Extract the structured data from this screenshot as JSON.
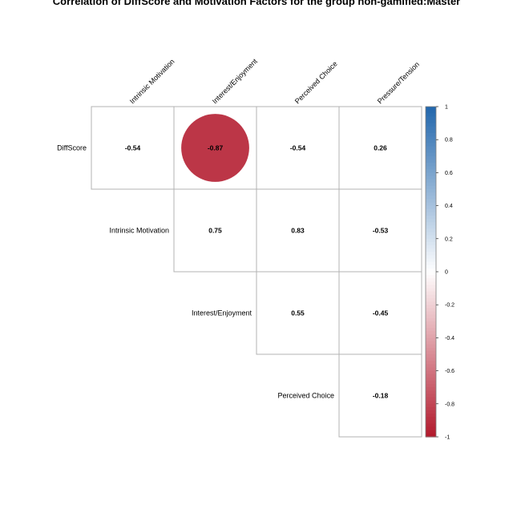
{
  "chart_data": {
    "type": "heatmap",
    "title": "Correlation of DiffScore and Motivation Factors for the group non-gamified:Master",
    "columns": [
      "Intrinsic Motivation",
      "Interest/Enjoyment",
      "Perceived Choice",
      "Pressure/Tension"
    ],
    "rows": [
      "DiffScore",
      "Intrinsic Motivation",
      "Interest/Enjoyment",
      "Perceived Choice"
    ],
    "values": [
      [
        -0.54,
        -0.87,
        -0.54,
        0.26
      ],
      [
        null,
        0.75,
        0.83,
        -0.53
      ],
      [
        null,
        null,
        0.55,
        -0.45
      ],
      [
        null,
        null,
        null,
        -0.18
      ]
    ],
    "value_labels": [
      [
        "-0.54",
        "-0.87",
        "-0.54",
        "0.26"
      ],
      [
        "",
        "0.75",
        "0.83",
        "-0.53"
      ],
      [
        "",
        "",
        "0.55",
        "-0.45"
      ],
      [
        "",
        "",
        "",
        "-0.18"
      ]
    ],
    "highlighted_cells": [
      {
        "row": 0,
        "col": 1
      }
    ],
    "colorbar": {
      "range": [
        -1,
        1
      ],
      "ticks": [
        "1",
        "0.8",
        "0.6",
        "0.4",
        "0.2",
        "0",
        "-0.2",
        "-0.4",
        "-0.6",
        "-0.8",
        "-1"
      ],
      "tick_values": [
        1,
        0.8,
        0.6,
        0.4,
        0.2,
        0,
        -0.2,
        -0.4,
        -0.6,
        -0.8,
        -1
      ],
      "colors": {
        "negative": "#B2182B",
        "neutral": "#FFFFFF",
        "positive": "#2166AC"
      }
    },
    "grid": true,
    "legend_position": "right"
  }
}
